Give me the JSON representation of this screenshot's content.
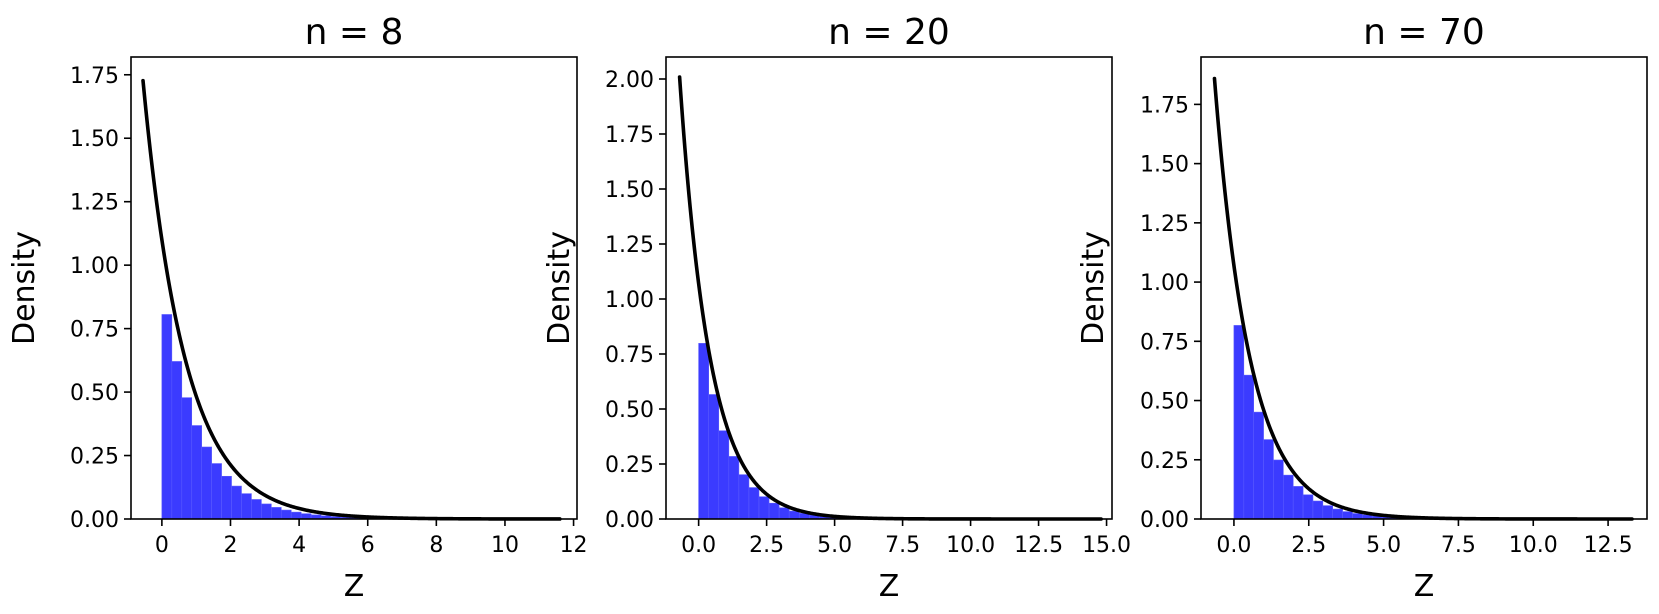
{
  "colors": {
    "bar": "#3b3bff",
    "curve": "#000000"
  },
  "chart_data": [
    {
      "type": "bar",
      "title": "n = 8",
      "xlabel": "Z",
      "ylabel": "Density",
      "xlim": [
        -0.9,
        12.1
      ],
      "ylim": [
        0,
        1.82
      ],
      "xticks": [
        0,
        2,
        4,
        6,
        8,
        10,
        12
      ],
      "xtick_labels": [
        "0",
        "2",
        "4",
        "6",
        "8",
        "10",
        "12"
      ],
      "yticks": [
        0,
        0.25,
        0.5,
        0.75,
        1.0,
        1.25,
        1.5,
        1.75
      ],
      "ytick_labels": [
        "0.00",
        "0.25",
        "0.50",
        "0.75",
        "1.00",
        "1.25",
        "1.50",
        "1.75"
      ],
      "histogram": {
        "x_start": 0,
        "x_end": 11.6,
        "bin_width": 0.29,
        "density_at_zero": 0.86,
        "decay_rate": 0.9
      },
      "curve": {
        "x_start": -0.55,
        "x_end": 11.6,
        "density_at_zero": 1.1,
        "decay_rate": 0.82
      }
    },
    {
      "type": "bar",
      "title": "n = 20",
      "xlabel": "Z",
      "ylabel": "Density",
      "xlim": [
        -1.2,
        15.2
      ],
      "ylim": [
        0,
        2.1
      ],
      "xticks": [
        0,
        2.5,
        5,
        7.5,
        10,
        12.5,
        15
      ],
      "xtick_labels": [
        "0.0",
        "2.5",
        "5.0",
        "7.5",
        "10.0",
        "12.5",
        "15.0"
      ],
      "yticks": [
        0,
        0.25,
        0.5,
        0.75,
        1.0,
        1.25,
        1.5,
        1.75,
        2.0
      ],
      "ytick_labels": [
        "0.00",
        "0.25",
        "0.50",
        "0.75",
        "1.00",
        "1.25",
        "1.50",
        "1.75",
        "2.00"
      ],
      "histogram": {
        "x_start": 0,
        "x_end": 14.8,
        "bin_width": 0.37,
        "density_at_zero": 0.87,
        "decay_rate": 0.93
      },
      "curve": {
        "x_start": -0.7,
        "x_end": 14.8,
        "density_at_zero": 1.07,
        "decay_rate": 0.9
      }
    },
    {
      "type": "bar",
      "title": "n = 70",
      "xlabel": "Z",
      "ylabel": "Density",
      "xlim": [
        -1.1,
        13.8
      ],
      "ylim": [
        0,
        1.95
      ],
      "xticks": [
        0,
        2.5,
        5,
        7.5,
        10,
        12.5
      ],
      "xtick_labels": [
        "0.0",
        "2.5",
        "5.0",
        "7.5",
        "10.0",
        "12.5"
      ],
      "yticks": [
        0,
        0.25,
        0.5,
        0.75,
        1.0,
        1.25,
        1.5,
        1.75
      ],
      "ytick_labels": [
        "0.00",
        "0.25",
        "0.50",
        "0.75",
        "1.00",
        "1.25",
        "1.50",
        "1.75"
      ],
      "histogram": {
        "x_start": 0,
        "x_end": 13.3,
        "bin_width": 0.33,
        "density_at_zero": 0.88,
        "decay_rate": 0.9
      },
      "curve": {
        "x_start": -0.65,
        "x_end": 13.3,
        "density_at_zero": 1.07,
        "decay_rate": 0.85
      }
    }
  ]
}
